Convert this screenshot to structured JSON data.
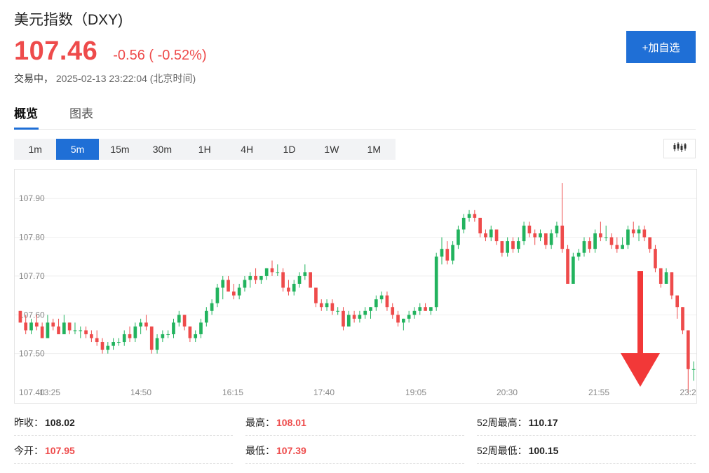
{
  "header": {
    "title": "美元指数（DXY)",
    "price": "107.46",
    "change": "-0.56 ( -0.52%)",
    "status": "交易中，",
    "timestamp": "2025-02-13 23:22:04",
    "timezone": "(北京时间)",
    "add_button": "+加自选"
  },
  "tabs": [
    {
      "label": "概览",
      "active": true
    },
    {
      "label": "图表",
      "active": false
    }
  ],
  "periods": [
    "1m",
    "5m",
    "15m",
    "30m",
    "1H",
    "4H",
    "1D",
    "1W",
    "1M"
  ],
  "active_period": "5m",
  "chart_type_icon": "candlestick-icon",
  "colors": {
    "up": "#22b35e",
    "down": "#ee4b4b",
    "accent": "#1f6fd6",
    "arrow": "#f23838"
  },
  "chart_data": {
    "type": "candlestick",
    "ylim": [
      107.4,
      107.96
    ],
    "y_ticks": [
      "107.50",
      "107.60",
      "107.70",
      "107.80",
      "107.90"
    ],
    "x_ticks": [
      "13:25",
      "14:50",
      "16:15",
      "17:40",
      "19:05",
      "20:30",
      "21:55",
      "23:2"
    ],
    "bottom_left_label": "107.40",
    "annotation": "down-arrow",
    "candles": [
      [
        107.61,
        107.61,
        107.58,
        107.58
      ],
      [
        107.58,
        107.6,
        107.55,
        107.56
      ],
      [
        107.56,
        107.59,
        107.55,
        107.58
      ],
      [
        107.58,
        107.6,
        107.56,
        107.57
      ],
      [
        107.57,
        107.58,
        107.54,
        107.54
      ],
      [
        107.54,
        107.6,
        107.54,
        107.58
      ],
      [
        107.58,
        107.59,
        107.56,
        107.57
      ],
      [
        107.57,
        107.59,
        107.55,
        107.55
      ],
      [
        107.55,
        107.6,
        107.55,
        107.58
      ],
      [
        107.58,
        107.58,
        107.55,
        107.56
      ],
      [
        107.56,
        107.58,
        107.55,
        107.56
      ],
      [
        107.56,
        107.57,
        107.54,
        107.56
      ],
      [
        107.56,
        107.57,
        107.54,
        107.55
      ],
      [
        107.55,
        107.56,
        107.53,
        107.54
      ],
      [
        107.54,
        107.56,
        107.52,
        107.53
      ],
      [
        107.53,
        107.54,
        107.5,
        107.51
      ],
      [
        107.51,
        107.53,
        107.5,
        107.52
      ],
      [
        107.52,
        107.54,
        107.51,
        107.53
      ],
      [
        107.53,
        107.54,
        107.52,
        107.53
      ],
      [
        107.53,
        107.56,
        107.52,
        107.55
      ],
      [
        107.55,
        107.57,
        107.53,
        107.54
      ],
      [
        107.54,
        107.58,
        107.53,
        107.57
      ],
      [
        107.57,
        107.59,
        107.55,
        107.58
      ],
      [
        107.58,
        107.6,
        107.56,
        107.57
      ],
      [
        107.57,
        107.57,
        107.5,
        107.51
      ],
      [
        107.51,
        107.55,
        107.5,
        107.54
      ],
      [
        107.54,
        107.56,
        107.53,
        107.55
      ],
      [
        107.55,
        107.56,
        107.54,
        107.55
      ],
      [
        107.55,
        107.59,
        107.54,
        107.58
      ],
      [
        107.58,
        107.61,
        107.57,
        107.6
      ],
      [
        107.6,
        107.6,
        107.56,
        107.57
      ],
      [
        107.57,
        107.57,
        107.53,
        107.54
      ],
      [
        107.54,
        107.56,
        107.53,
        107.55
      ],
      [
        107.55,
        107.59,
        107.54,
        107.58
      ],
      [
        107.58,
        107.62,
        107.57,
        107.61
      ],
      [
        107.61,
        107.64,
        107.6,
        107.63
      ],
      [
        107.63,
        107.68,
        107.62,
        107.67
      ],
      [
        107.67,
        107.7,
        107.64,
        107.69
      ],
      [
        107.69,
        107.7,
        107.66,
        107.66
      ],
      [
        107.66,
        107.68,
        107.64,
        107.65
      ],
      [
        107.65,
        107.68,
        107.64,
        107.67
      ],
      [
        107.67,
        107.7,
        107.66,
        107.69
      ],
      [
        107.69,
        107.71,
        107.67,
        107.7
      ],
      [
        107.7,
        107.72,
        107.68,
        107.69
      ],
      [
        107.69,
        107.7,
        107.68,
        107.7
      ],
      [
        107.7,
        107.72,
        107.69,
        107.72
      ],
      [
        107.72,
        107.74,
        107.7,
        107.71
      ],
      [
        107.71,
        107.73,
        107.7,
        107.71
      ],
      [
        107.71,
        107.72,
        107.66,
        107.67
      ],
      [
        107.67,
        107.69,
        107.65,
        107.66
      ],
      [
        107.66,
        107.69,
        107.65,
        107.68
      ],
      [
        107.68,
        107.71,
        107.67,
        107.7
      ],
      [
        107.7,
        107.73,
        107.69,
        107.71
      ],
      [
        107.71,
        107.71,
        107.67,
        107.67
      ],
      [
        107.67,
        107.67,
        107.62,
        107.63
      ],
      [
        107.63,
        107.64,
        107.61,
        107.62
      ],
      [
        107.62,
        107.64,
        107.61,
        107.63
      ],
      [
        107.63,
        107.64,
        107.6,
        107.61
      ],
      [
        107.61,
        107.62,
        107.6,
        107.61
      ],
      [
        107.61,
        107.62,
        107.56,
        107.57
      ],
      [
        107.57,
        107.61,
        107.57,
        107.6
      ],
      [
        107.6,
        107.61,
        107.58,
        107.59
      ],
      [
        107.59,
        107.61,
        107.58,
        107.6
      ],
      [
        107.6,
        107.62,
        107.59,
        107.61
      ],
      [
        107.61,
        107.62,
        107.59,
        107.62
      ],
      [
        107.62,
        107.65,
        107.61,
        107.64
      ],
      [
        107.64,
        107.66,
        107.63,
        107.65
      ],
      [
        107.65,
        107.66,
        107.61,
        107.62
      ],
      [
        107.62,
        107.63,
        107.59,
        107.6
      ],
      [
        107.6,
        107.61,
        107.57,
        107.58
      ],
      [
        107.58,
        107.59,
        107.56,
        107.59
      ],
      [
        107.59,
        107.61,
        107.58,
        107.6
      ],
      [
        107.6,
        107.62,
        107.59,
        107.61
      ],
      [
        107.61,
        107.63,
        107.6,
        107.62
      ],
      [
        107.62,
        107.63,
        107.61,
        107.61
      ],
      [
        107.61,
        107.62,
        107.6,
        107.62
      ],
      [
        107.62,
        107.76,
        107.61,
        107.75
      ],
      [
        107.75,
        107.8,
        107.73,
        107.77
      ],
      [
        107.77,
        107.79,
        107.73,
        107.74
      ],
      [
        107.74,
        107.79,
        107.73,
        107.78
      ],
      [
        107.78,
        107.83,
        107.77,
        107.82
      ],
      [
        107.82,
        107.86,
        107.81,
        107.85
      ],
      [
        107.85,
        107.87,
        107.84,
        107.86
      ],
      [
        107.86,
        107.87,
        107.84,
        107.85
      ],
      [
        107.85,
        107.85,
        107.8,
        107.81
      ],
      [
        107.81,
        107.82,
        107.79,
        107.8
      ],
      [
        107.8,
        107.83,
        107.79,
        107.82
      ],
      [
        107.82,
        107.82,
        107.78,
        107.79
      ],
      [
        107.79,
        107.79,
        107.75,
        107.76
      ],
      [
        107.76,
        107.8,
        107.75,
        107.79
      ],
      [
        107.79,
        107.8,
        107.76,
        107.77
      ],
      [
        107.77,
        107.8,
        107.76,
        107.79
      ],
      [
        107.79,
        107.84,
        107.78,
        107.83
      ],
      [
        107.83,
        107.84,
        107.8,
        107.81
      ],
      [
        107.81,
        107.82,
        107.78,
        107.8
      ],
      [
        107.8,
        107.82,
        107.79,
        107.81
      ],
      [
        107.81,
        107.81,
        107.77,
        107.78
      ],
      [
        107.78,
        107.82,
        107.77,
        107.81
      ],
      [
        107.81,
        107.84,
        107.8,
        107.83
      ],
      [
        107.83,
        107.94,
        107.76,
        107.77
      ],
      [
        107.77,
        107.78,
        107.68,
        107.68
      ],
      [
        107.68,
        107.76,
        107.68,
        107.75
      ],
      [
        107.75,
        107.77,
        107.74,
        107.76
      ],
      [
        107.76,
        107.8,
        107.75,
        107.79
      ],
      [
        107.79,
        107.8,
        107.76,
        107.77
      ],
      [
        107.77,
        107.82,
        107.76,
        107.81
      ],
      [
        107.81,
        107.84,
        107.79,
        107.8
      ],
      [
        107.8,
        107.83,
        107.79,
        107.8
      ],
      [
        107.8,
        107.81,
        107.77,
        107.78
      ],
      [
        107.78,
        107.8,
        107.76,
        107.77
      ],
      [
        107.77,
        107.8,
        107.77,
        107.78
      ],
      [
        107.78,
        107.83,
        107.77,
        107.82
      ],
      [
        107.82,
        107.84,
        107.8,
        107.81
      ],
      [
        107.81,
        107.83,
        107.79,
        107.82
      ],
      [
        107.82,
        107.83,
        107.79,
        107.8
      ],
      [
        107.8,
        107.8,
        107.76,
        107.77
      ],
      [
        107.77,
        107.78,
        107.71,
        107.72
      ],
      [
        107.72,
        107.72,
        107.67,
        107.68
      ],
      [
        107.68,
        107.72,
        107.68,
        107.71
      ],
      [
        107.71,
        107.71,
        107.64,
        107.65
      ],
      [
        107.65,
        107.65,
        107.59,
        107.62
      ],
      [
        107.62,
        107.62,
        107.55,
        107.56
      ],
      [
        107.56,
        107.56,
        107.4,
        107.46
      ],
      [
        107.46,
        107.48,
        107.43,
        107.46
      ]
    ]
  },
  "stats": [
    {
      "label": "昨收：",
      "value": "108.02",
      "highlight": false
    },
    {
      "label": "最高：",
      "value": "108.01",
      "highlight": true
    },
    {
      "label": "52周最高：",
      "value": "110.17",
      "highlight": false
    },
    {
      "label": "今开：",
      "value": "107.95",
      "highlight": true
    },
    {
      "label": "最低：",
      "value": "107.39",
      "highlight": true
    },
    {
      "label": "52周最低：",
      "value": "100.15",
      "highlight": false
    }
  ]
}
